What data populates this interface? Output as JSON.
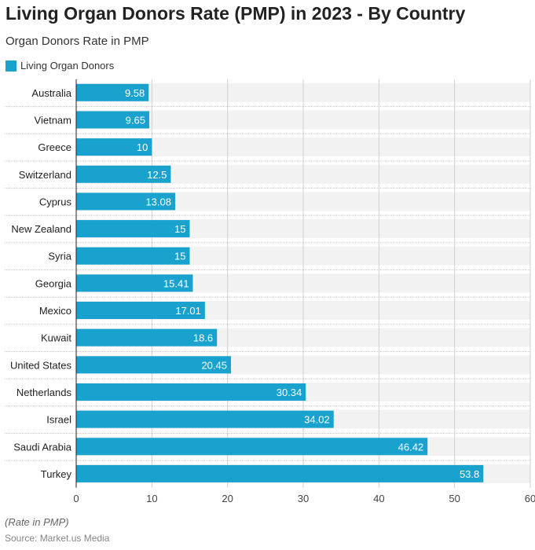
{
  "chart_data": {
    "type": "bar",
    "orientation": "horizontal",
    "title": "Living Organ Donors Rate (PMP) in 2023 - By Country",
    "subtitle": "Organ Donors Rate in PMP",
    "categories": [
      "Australia",
      "Vietnam",
      "Greece",
      "Switzerland",
      "Cyprus",
      "New Zealand",
      "Syria",
      "Georgia",
      "Mexico",
      "Kuwait",
      "United States",
      "Netherlands",
      "Israel",
      "Saudi Arabia",
      "Turkey"
    ],
    "series": [
      {
        "name": "Living Organ Donors",
        "values": [
          9.58,
          9.65,
          10,
          12.5,
          13.08,
          15,
          15,
          15.41,
          17.01,
          18.6,
          20.45,
          30.34,
          34.02,
          46.42,
          53.8
        ]
      }
    ],
    "data_labels": [
      "9.58",
      "9.65",
      "10",
      "12.5",
      "13.08",
      "15",
      "15",
      "15.41",
      "17.01",
      "18.6",
      "20.45",
      "30.34",
      "34.02",
      "46.42",
      "53.8"
    ],
    "xlim": [
      0,
      60
    ],
    "xticks": [
      "0",
      "10",
      "20",
      "30",
      "40",
      "50",
      "60"
    ],
    "grid": true,
    "legend": "top-left",
    "note": "(Rate in PMP)",
    "source": "Source: Market.us Media",
    "colors": {
      "bar": "#18a2cd",
      "band": "#f2f2f2"
    }
  }
}
